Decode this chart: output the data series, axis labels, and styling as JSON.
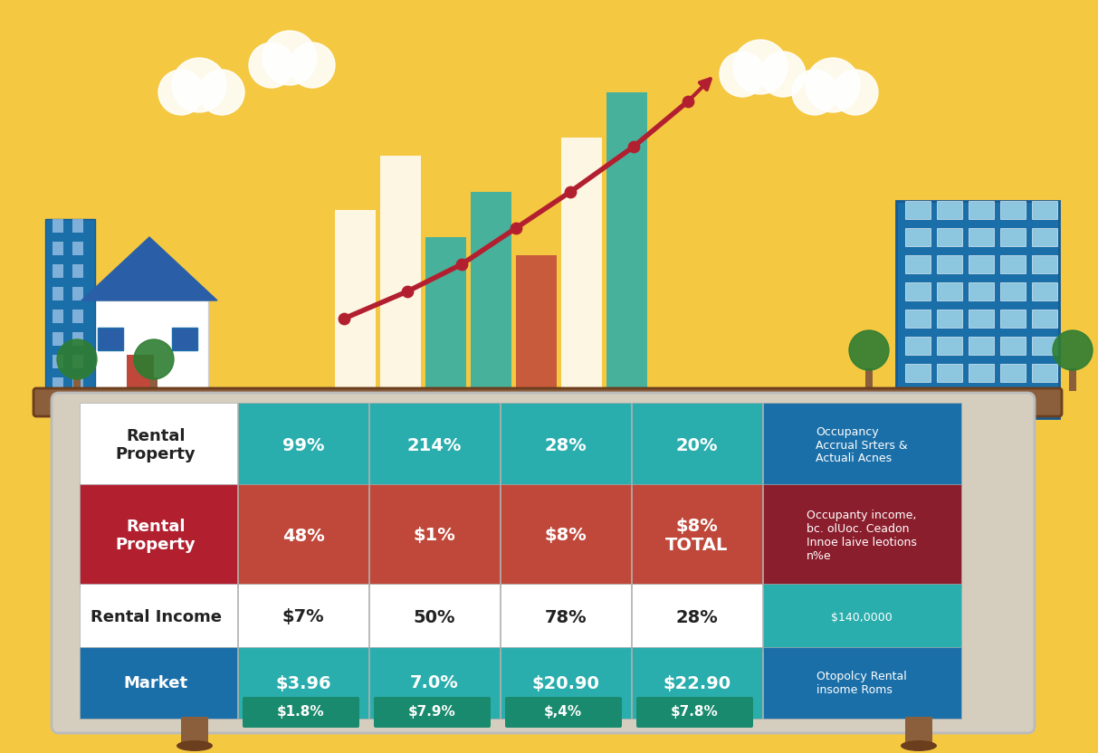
{
  "bg_color": "#F5C842",
  "table_bg": "#E8E0D5",
  "rows": [
    {
      "label": "Rental\nProperty",
      "label_bg": "#FFFFFF",
      "label_color": "#222222",
      "cells": [
        "99%",
        "214%",
        "28%",
        "20%"
      ],
      "cell_bg": "#2AADAD",
      "cell_color": "#FFFFFF",
      "note": "Occupancy\nAccrual Srters &\nActuali Acnes",
      "note_bg": "#1B6FA8",
      "note_color": "#FFFFFF"
    },
    {
      "label": "Rental\nProperty",
      "label_bg": "#B22030",
      "label_color": "#FFFFFF",
      "cells": [
        "48%",
        "$1%",
        "$8%",
        "$8%\nTOTAL"
      ],
      "cell_bg": "#C0483A",
      "cell_color": "#FFFFFF",
      "note": "Occupanty income,\nbc. olUoc. Ceadon\nInnoe laive leotions\nn%e",
      "note_bg": "#8B1E2D",
      "note_color": "#FFFFFF"
    },
    {
      "label": "Rental Income",
      "label_bg": "#FFFFFF",
      "label_color": "#222222",
      "cells": [
        "$7%",
        "50%",
        "78%",
        "28%"
      ],
      "cell_bg": "#FFFFFF",
      "cell_color": "#222222",
      "note": "$140,0000",
      "note_bg": "#2AADAD",
      "note_color": "#FFFFFF"
    },
    {
      "label": "Market",
      "label_bg": "#1B6FA8",
      "label_color": "#FFFFFF",
      "cells": [
        "$3.96",
        "7.0%",
        "$20.90",
        "$22.90"
      ],
      "cell_bg": "#2AADAD",
      "cell_color": "#FFFFFF",
      "note": "Otopolcy Rental\ninsome Roms",
      "note_bg": "#1B6FA8",
      "note_color": "#FFFFFF"
    }
  ],
  "footer_cells": [
    "$1.8%",
    "$7.9%",
    "$,4%",
    "$7.8%"
  ],
  "footer_bg": "#1A8A6E",
  "footer_color": "#FFFFFF",
  "bar_colors_white": "#FFFFFF",
  "bar_colors_teal": "#2AADAD",
  "bar_colors_blue": "#1B6FA8",
  "line_color": "#B22030",
  "building_left_color": "#1B6FA8",
  "building_right_color": "#1B6FA8",
  "shelf_color": "#8B5E3C"
}
